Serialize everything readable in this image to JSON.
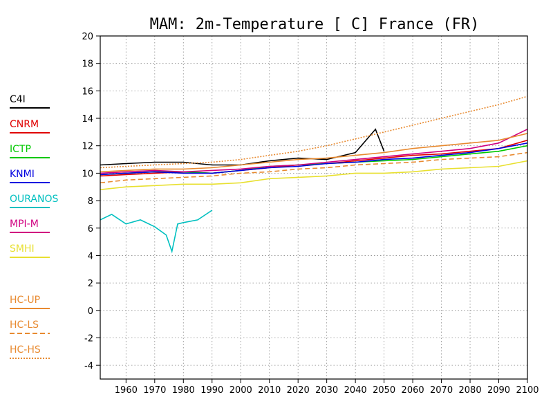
{
  "chart_data": {
    "type": "line",
    "title": "MAM: 2m-Temperature [  C] France (FR)",
    "xlabel": "",
    "ylabel": "",
    "xlim": [
      1951,
      2100
    ],
    "ylim": [
      -5,
      20
    ],
    "xticks": [
      1960,
      1970,
      1980,
      1990,
      2000,
      2010,
      2020,
      2030,
      2040,
      2050,
      2060,
      2070,
      2080,
      2090,
      2100
    ],
    "yticks": [
      -4,
      -2,
      0,
      2,
      4,
      6,
      8,
      10,
      12,
      14,
      16,
      18,
      20
    ],
    "grid": true,
    "legend_position": "left",
    "series": [
      {
        "name": "C4I",
        "color": "#000000",
        "style": "solid",
        "x": [
          1951,
          1960,
          1970,
          1980,
          1990,
          2000,
          2010,
          2020,
          2030,
          2040,
          2047,
          2050
        ],
        "y": [
          10.6,
          10.7,
          10.8,
          10.8,
          10.6,
          10.6,
          10.9,
          11.1,
          11.0,
          11.5,
          13.2,
          11.6
        ]
      },
      {
        "name": "CNRM",
        "color": "#e00000",
        "style": "solid",
        "x": [
          1951,
          1960,
          1970,
          1980,
          1990,
          2000,
          2010,
          2020,
          2030,
          2040,
          2050,
          2060,
          2070,
          2080,
          2090,
          2100
        ],
        "y": [
          9.8,
          9.9,
          10.0,
          10.1,
          10.0,
          10.2,
          10.4,
          10.6,
          10.7,
          10.9,
          11.1,
          11.3,
          11.4,
          11.6,
          11.8,
          12.4
        ]
      },
      {
        "name": "ICTP",
        "color": "#00c800",
        "style": "solid",
        "x": [
          1951,
          1960,
          1970,
          1980,
          1990,
          2000,
          2010,
          2020,
          2030,
          2040,
          2050,
          2060,
          2070,
          2080,
          2090,
          2100
        ],
        "y": [
          9.9,
          10.0,
          10.1,
          10.1,
          10.0,
          10.2,
          10.5,
          10.6,
          10.7,
          10.8,
          10.9,
          11.0,
          11.2,
          11.4,
          11.6,
          12.0
        ]
      },
      {
        "name": "KNMI",
        "color": "#0000e0",
        "style": "solid",
        "x": [
          1951,
          1960,
          1970,
          1980,
          1990,
          2000,
          2010,
          2020,
          2030,
          2040,
          2050,
          2060,
          2070,
          2080,
          2090,
          2100
        ],
        "y": [
          9.9,
          10.0,
          10.1,
          10.0,
          10.0,
          10.2,
          10.4,
          10.5,
          10.7,
          10.8,
          11.0,
          11.1,
          11.3,
          11.5,
          11.8,
          12.2
        ]
      },
      {
        "name": "OURANOS",
        "color": "#00c0c0",
        "style": "solid",
        "x": [
          1951,
          1955,
          1960,
          1965,
          1970,
          1974,
          1976,
          1978,
          1980,
          1985,
          1990
        ],
        "y": [
          6.6,
          7.0,
          6.3,
          6.6,
          6.1,
          5.5,
          4.3,
          6.3,
          6.4,
          6.6,
          7.3
        ]
      },
      {
        "name": "MPI-M",
        "color": "#d00080",
        "style": "solid",
        "x": [
          1951,
          1960,
          1970,
          1980,
          1990,
          2000,
          2010,
          2020,
          2030,
          2040,
          2050,
          2060,
          2070,
          2080,
          2090,
          2100
        ],
        "y": [
          10.0,
          10.1,
          10.2,
          10.1,
          10.2,
          10.3,
          10.5,
          10.6,
          10.8,
          11.0,
          11.2,
          11.4,
          11.6,
          11.8,
          12.2,
          13.2
        ]
      },
      {
        "name": "SMHI",
        "color": "#e8e030",
        "style": "solid",
        "x": [
          1951,
          1960,
          1970,
          1980,
          1990,
          2000,
          2010,
          2020,
          2030,
          2040,
          2050,
          2060,
          2070,
          2080,
          2090,
          2100
        ],
        "y": [
          8.8,
          9.0,
          9.1,
          9.2,
          9.2,
          9.3,
          9.6,
          9.7,
          9.8,
          10.0,
          10.0,
          10.1,
          10.3,
          10.4,
          10.5,
          10.9
        ]
      },
      {
        "name": "HC-UP",
        "color": "#e88a30",
        "style": "solid",
        "x": [
          1951,
          1960,
          1970,
          1980,
          1990,
          2000,
          2010,
          2020,
          2030,
          2040,
          2050,
          2060,
          2070,
          2080,
          2090,
          2100
        ],
        "y": [
          10.1,
          10.2,
          10.3,
          10.3,
          10.4,
          10.6,
          10.8,
          11.0,
          11.1,
          11.3,
          11.5,
          11.8,
          12.0,
          12.2,
          12.4,
          12.9
        ]
      },
      {
        "name": "HC-LS",
        "color": "#e88a30",
        "style": "dashed",
        "x": [
          1951,
          1960,
          1970,
          1980,
          1990,
          2000,
          2010,
          2020,
          2030,
          2040,
          2050,
          2060,
          2070,
          2080,
          2090,
          2100
        ],
        "y": [
          9.3,
          9.5,
          9.6,
          9.7,
          9.8,
          10.0,
          10.1,
          10.3,
          10.4,
          10.6,
          10.7,
          10.8,
          11.0,
          11.1,
          11.2,
          11.5
        ]
      },
      {
        "name": "HC-HS",
        "color": "#e88a30",
        "style": "dotted",
        "x": [
          1951,
          1960,
          1970,
          1980,
          1990,
          2000,
          2010,
          2020,
          2030,
          2040,
          2050,
          2060,
          2070,
          2080,
          2090,
          2100
        ],
        "y": [
          10.4,
          10.5,
          10.6,
          10.7,
          10.8,
          11.0,
          11.3,
          11.6,
          12.0,
          12.5,
          13.0,
          13.5,
          14.0,
          14.5,
          15.0,
          15.6
        ]
      }
    ]
  }
}
